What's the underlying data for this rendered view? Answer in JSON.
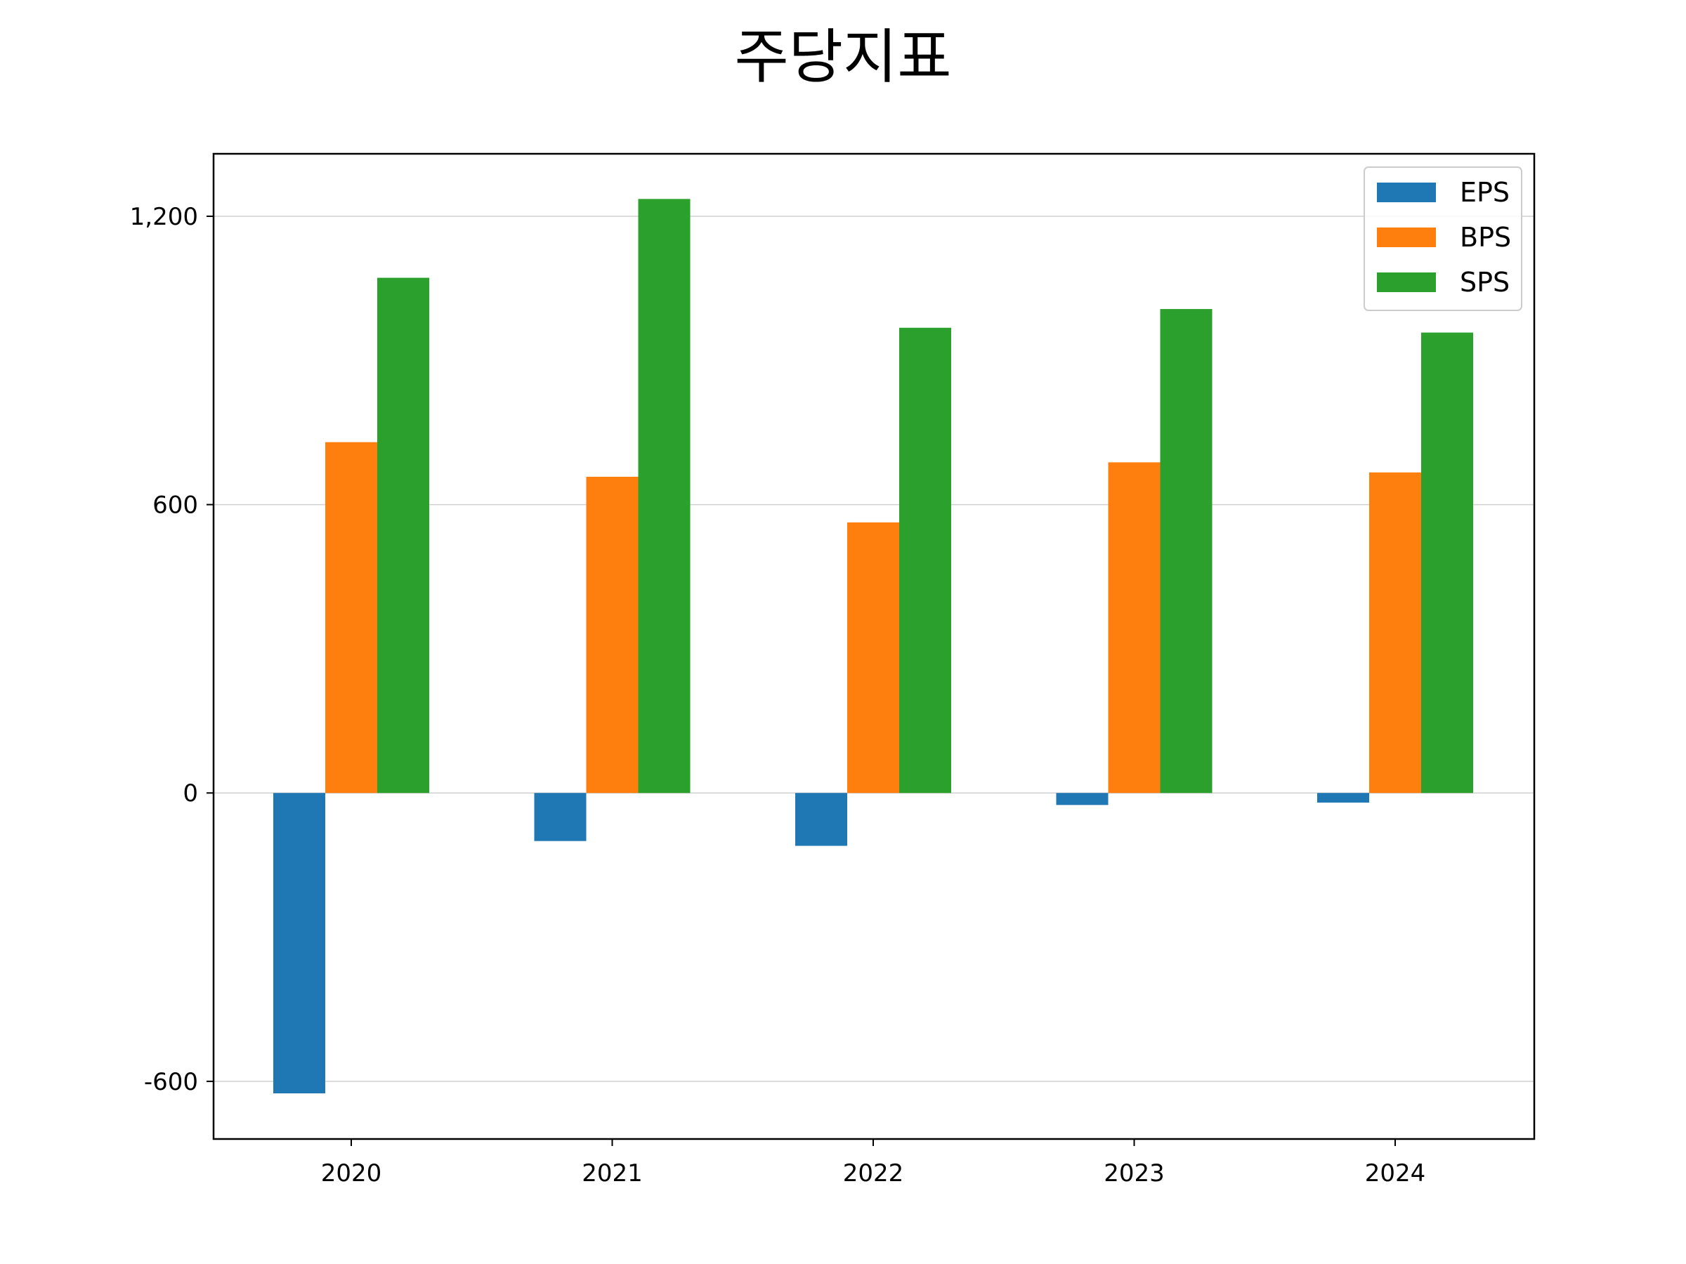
{
  "chart_data": {
    "type": "bar",
    "title": "주당지표",
    "xlabel": "",
    "ylabel": "",
    "categories": [
      "2020",
      "2021",
      "2022",
      "2023",
      "2024"
    ],
    "series": [
      {
        "name": "EPS",
        "color": "#1f77b4",
        "values": [
          -625,
          -100,
          -110,
          -25,
          -20
        ]
      },
      {
        "name": "BPS",
        "color": "#ff7f0e",
        "values": [
          730,
          658,
          563,
          688,
          667
        ]
      },
      {
        "name": "SPS",
        "color": "#2ca02c",
        "values": [
          1072,
          1236,
          968,
          1007,
          958
        ]
      }
    ],
    "ylim": [
      -720,
      1330
    ],
    "yticks": [
      -600,
      0,
      600,
      1200
    ],
    "ytick_labels": [
      "-600",
      "0",
      "600",
      "1,200"
    ],
    "grid": true,
    "legend_position": "top-right"
  }
}
